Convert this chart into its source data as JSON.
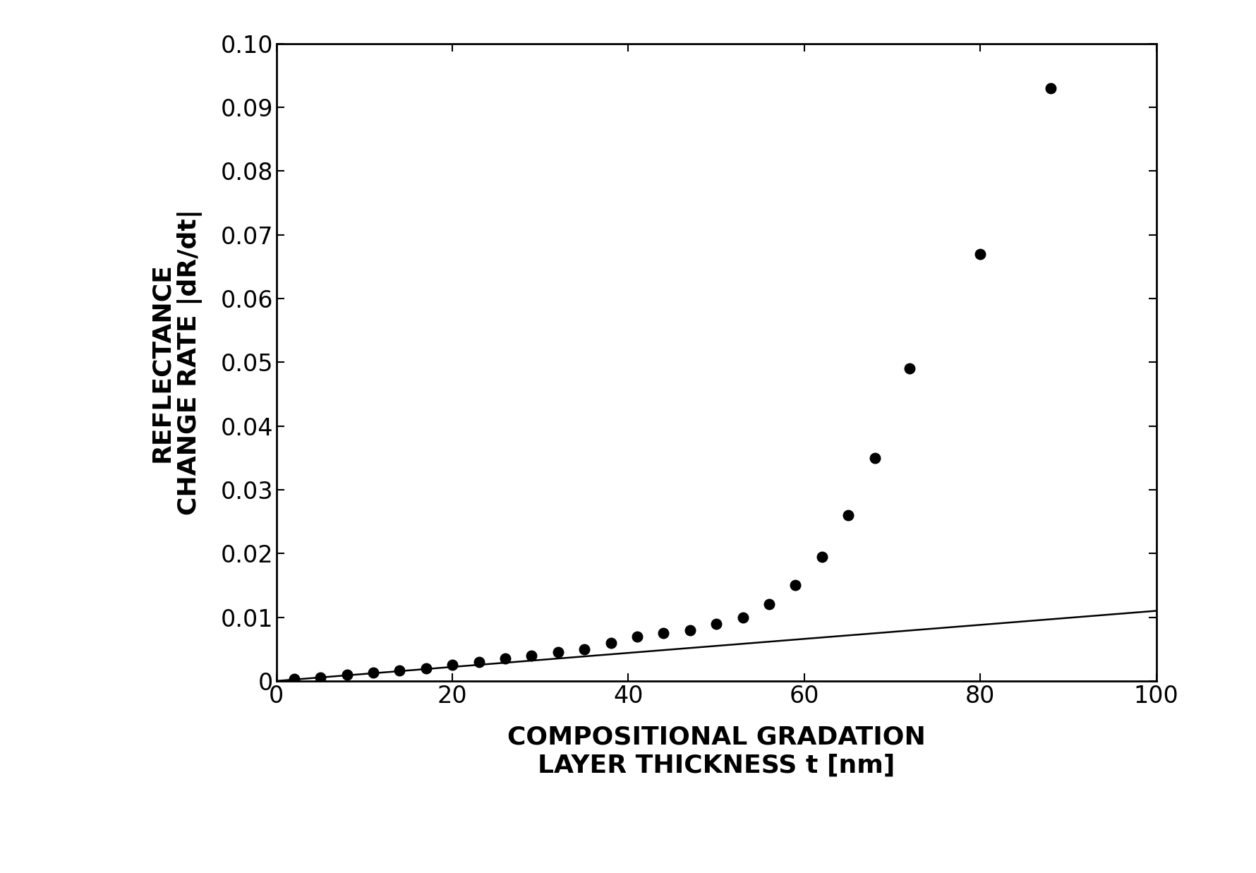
{
  "scatter_x": [
    2,
    5,
    8,
    11,
    14,
    17,
    20,
    23,
    26,
    29,
    32,
    35,
    38,
    41,
    44,
    47,
    50,
    53,
    56,
    59,
    62,
    65,
    68,
    72,
    80,
    88
  ],
  "scatter_y": [
    0.0003,
    0.0005,
    0.001,
    0.0013,
    0.0016,
    0.002,
    0.0025,
    0.003,
    0.0035,
    0.004,
    0.0045,
    0.005,
    0.006,
    0.007,
    0.0075,
    0.008,
    0.009,
    0.01,
    0.012,
    0.015,
    0.0195,
    0.026,
    0.035,
    0.049,
    0.067,
    0.093
  ],
  "line_x": [
    0,
    100
  ],
  "line_y": [
    0.0,
    0.011
  ],
  "xlim": [
    0,
    100
  ],
  "ylim": [
    0,
    0.1
  ],
  "xticks": [
    0,
    20,
    40,
    60,
    80,
    100
  ],
  "yticks": [
    0,
    0.01,
    0.02,
    0.03,
    0.04,
    0.05,
    0.06,
    0.07,
    0.08,
    0.09,
    0.1
  ],
  "xlabel_line1": "COMPOSITIONAL GRADATION",
  "xlabel_line2": "LAYER THICKNESS t [nm]",
  "ylabel_line1": "REFLECTANCE",
  "ylabel_line2": "CHANGE RATE |dR/dt|",
  "dot_color": "#000000",
  "line_color": "#000000",
  "dot_size": 110,
  "background_color": "#ffffff",
  "figsize": [
    17.81,
    12.37
  ],
  "dpi": 100
}
